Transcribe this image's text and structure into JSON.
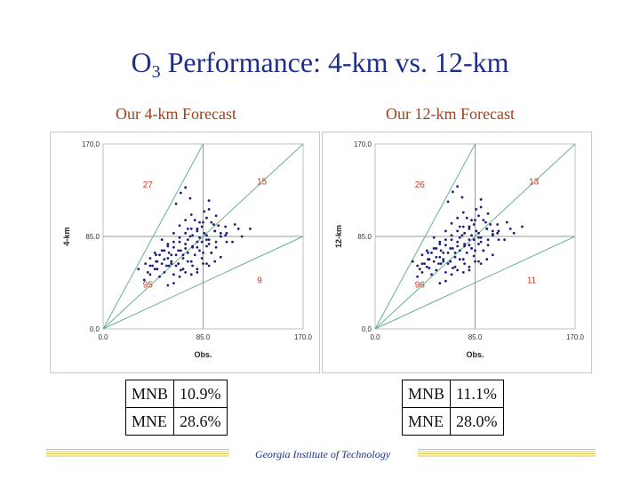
{
  "title": {
    "main": "O",
    "sub": "3",
    "rest": " Performance: 4-km vs. 12-km"
  },
  "footer": "Georgia Institute of Technology",
  "chart_data": [
    {
      "type": "scatter",
      "panel_label": "Our 4-km Forecast",
      "xlabel": "Obs.",
      "ylabel": "4-km",
      "xlim": [
        0,
        170
      ],
      "ylim": [
        0,
        170
      ],
      "x_ticks": [
        "0.0",
        "85.0",
        "170.0"
      ],
      "y_ticks": [
        "0.0",
        "85.0",
        "170.0"
      ],
      "region_counts": {
        "upper_left": "27",
        "upper_right": "15",
        "lower_left": "95",
        "lower_right": "9"
      },
      "stats": [
        {
          "name": "MNB",
          "value": "10.9%"
        },
        {
          "name": "MNE",
          "value": "28.6%"
        }
      ],
      "point_color": "#1a1f7a",
      "x": [
        30,
        36,
        38,
        40,
        42,
        44,
        45,
        46,
        48,
        50,
        52,
        54,
        55,
        56,
        58,
        60,
        62,
        64,
        65,
        66,
        68,
        70,
        72,
        74,
        75,
        76,
        78,
        80,
        82,
        84,
        86,
        88,
        90,
        92,
        95,
        98,
        100,
        105,
        110,
        115,
        118,
        125,
        35,
        40,
        44,
        48,
        52,
        56,
        60,
        64,
        68,
        72,
        76,
        80,
        84,
        88,
        92,
        96,
        50,
        55,
        60,
        65,
        70,
        75,
        80,
        85,
        90,
        95,
        100,
        105,
        45,
        50,
        55,
        60,
        65,
        70,
        75,
        80,
        85,
        90,
        40,
        46,
        52,
        58,
        64,
        70,
        76,
        82,
        88,
        94,
        100,
        62,
        66,
        70,
        74,
        78,
        82,
        86,
        90,
        55,
        60,
        65,
        70,
        75,
        80,
        85,
        90,
        95,
        100,
        68,
        72,
        76,
        80,
        84,
        88,
        92,
        96,
        104,
        112,
        72,
        80,
        88,
        96,
        104,
        58,
        62,
        66
      ],
      "y": [
        55,
        60,
        52,
        65,
        58,
        70,
        62,
        55,
        68,
        60,
        72,
        58,
        65,
        70,
        62,
        75,
        68,
        60,
        80,
        72,
        65,
        78,
        70,
        85,
        62,
        75,
        68,
        90,
        72,
        80,
        88,
        76,
        82,
        70,
        90,
        95,
        85,
        88,
        80,
        92,
        85,
        92,
        45,
        50,
        55,
        48,
        52,
        58,
        50,
        60,
        55,
        62,
        58,
        52,
        65,
        60,
        70,
        75,
        82,
        78,
        88,
        95,
        100,
        105,
        92,
        98,
        110,
        90,
        85,
        80,
        68,
        72,
        76,
        80,
        84,
        88,
        92,
        75,
        70,
        78,
        58,
        62,
        64,
        68,
        72,
        74,
        76,
        84,
        82,
        96,
        88,
        115,
        125,
        130,
        120,
        100,
        98,
        108,
        118,
        40,
        42,
        48,
        52,
        50,
        55,
        60,
        58,
        62,
        66,
        68,
        82,
        86,
        92,
        94,
        102,
        98,
        104,
        94,
        96,
        92,
        80,
        86,
        80,
        86,
        60,
        58,
        54
      ]
    },
    {
      "type": "scatter",
      "panel_label": "Our 12-km Forecast",
      "xlabel": "Obs.",
      "ylabel": "12-km",
      "xlim": [
        0,
        170
      ],
      "ylim": [
        0,
        170
      ],
      "x_ticks": [
        "0.0",
        "85.0",
        "170.0"
      ],
      "y_ticks": [
        "0.0",
        "85.0",
        "170.0"
      ],
      "region_counts": {
        "upper_left": "26",
        "upper_right": "13",
        "lower_left": "96",
        "lower_right": "11"
      },
      "stats": [
        {
          "name": "MNB",
          "value": "11.1%"
        },
        {
          "name": "MNE",
          "value": "28.0%"
        }
      ],
      "point_color": "#1a1f7a",
      "x": [
        32,
        36,
        38,
        40,
        42,
        44,
        45,
        46,
        48,
        50,
        52,
        54,
        55,
        56,
        58,
        60,
        62,
        64,
        65,
        66,
        68,
        70,
        72,
        74,
        75,
        76,
        78,
        80,
        82,
        84,
        86,
        88,
        90,
        92,
        95,
        98,
        100,
        105,
        110,
        115,
        118,
        125,
        36,
        40,
        44,
        48,
        52,
        56,
        60,
        64,
        68,
        72,
        76,
        80,
        84,
        88,
        92,
        96,
        50,
        55,
        60,
        65,
        70,
        75,
        80,
        85,
        90,
        95,
        100,
        105,
        45,
        50,
        55,
        60,
        65,
        70,
        75,
        80,
        85,
        90,
        40,
        46,
        52,
        58,
        64,
        70,
        76,
        82,
        88,
        94,
        100,
        62,
        66,
        70,
        74,
        78,
        82,
        86,
        90,
        55,
        60,
        65,
        70,
        75,
        80,
        85,
        90,
        95,
        100,
        68,
        72,
        76,
        80,
        84,
        88,
        92,
        96,
        104,
        112,
        72,
        80,
        88,
        96,
        104,
        58,
        62,
        66
      ],
      "y": [
        62,
        58,
        55,
        68,
        60,
        72,
        64,
        56,
        70,
        62,
        74,
        60,
        66,
        72,
        64,
        77,
        70,
        62,
        82,
        74,
        66,
        80,
        72,
        86,
        64,
        76,
        70,
        92,
        74,
        82,
        90,
        78,
        84,
        72,
        92,
        96,
        86,
        90,
        82,
        92,
        88,
        94,
        48,
        52,
        57,
        50,
        54,
        60,
        52,
        62,
        57,
        64,
        60,
        54,
        67,
        62,
        72,
        77,
        84,
        80,
        90,
        97,
        102,
        107,
        94,
        100,
        112,
        92,
        87,
        82,
        70,
        74,
        78,
        82,
        86,
        90,
        94,
        77,
        72,
        80,
        60,
        64,
        66,
        70,
        74,
        76,
        78,
        86,
        84,
        98,
        90,
        117,
        126,
        131,
        121,
        102,
        100,
        110,
        119,
        42,
        44,
        50,
        54,
        52,
        57,
        62,
        60,
        64,
        68,
        70,
        84,
        88,
        94,
        96,
        104,
        100,
        106,
        96,
        98,
        94,
        82,
        88,
        82,
        88,
        62,
        60,
        56
      ]
    }
  ]
}
